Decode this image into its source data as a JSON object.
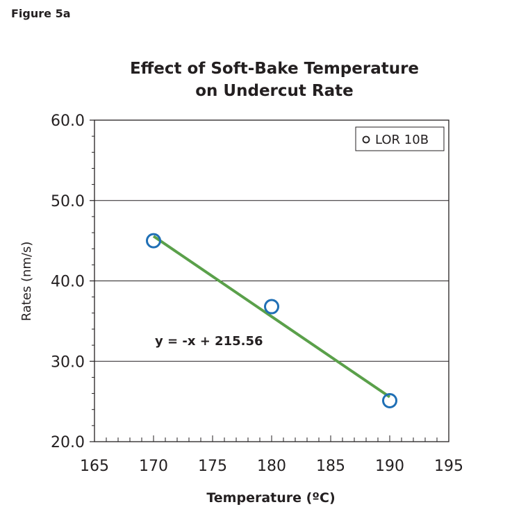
{
  "figure_label": "Figure 5a",
  "chart_data": {
    "type": "scatter",
    "title": "Effect of Soft-Bake Temperature",
    "subtitle": "on Undercut Rate",
    "xlabel": "Temperature (ºC)",
    "ylabel": "Rates (nm/s)",
    "xlim": [
      165,
      195
    ],
    "ylim": [
      20.0,
      60.0
    ],
    "x_ticks": [
      "165",
      "170",
      "175",
      "180",
      "185",
      "190",
      "195"
    ],
    "y_ticks": [
      "20.0",
      "30.0",
      "40.0",
      "50.0",
      "60.0"
    ],
    "grid": "horizontal",
    "legend_position": "top-right",
    "series": [
      {
        "name": "LOR 10B",
        "x": [
          170,
          180,
          190
        ],
        "y": [
          45.0,
          36.8,
          25.1
        ],
        "marker": "open-circle",
        "color": "#1f6fb5"
      }
    ],
    "trendline": {
      "equation": "y = -x + 215.56",
      "x": [
        170,
        190
      ],
      "y": [
        45.56,
        25.56
      ],
      "color": "#5aa04a"
    }
  }
}
